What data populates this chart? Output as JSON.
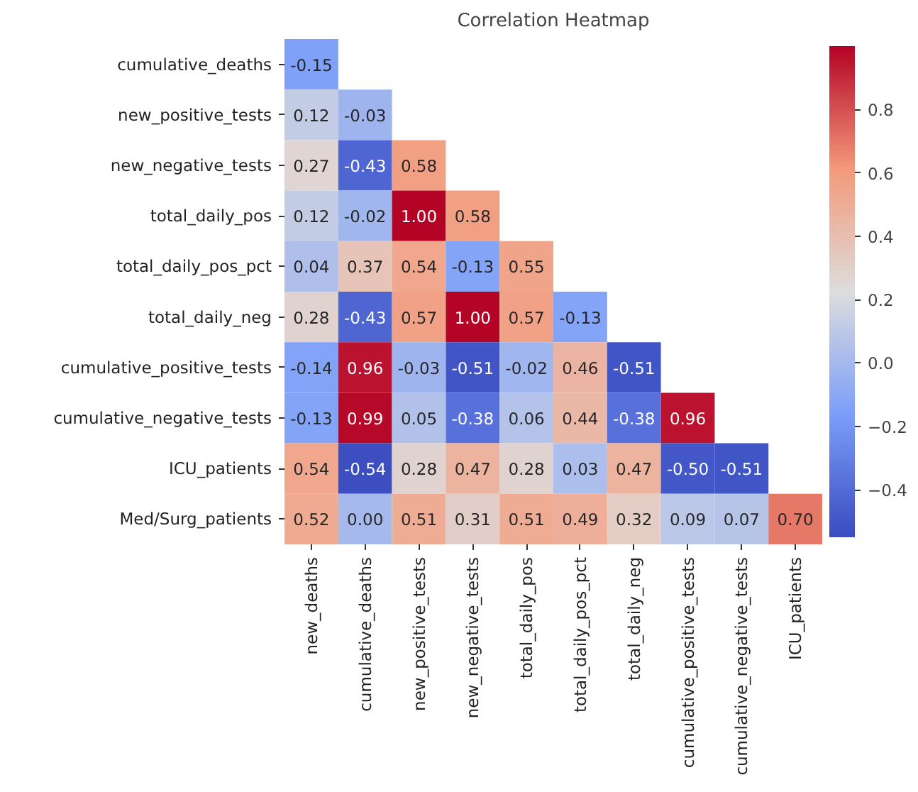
{
  "chart_data": {
    "type": "heatmap",
    "title": "Correlation Heatmap",
    "categories": [
      "new_deaths",
      "cumulative_deaths",
      "new_positive_tests",
      "new_negative_tests",
      "total_daily_pos",
      "total_daily_pos_pct",
      "total_daily_neg",
      "cumulative_positive_tests",
      "cumulative_negative_tests",
      "ICU_patients"
    ],
    "y_categories": [
      "cumulative_deaths",
      "new_positive_tests",
      "new_negative_tests",
      "total_daily_pos",
      "total_daily_pos_pct",
      "total_daily_neg",
      "cumulative_positive_tests",
      "cumulative_negative_tests",
      "ICU_patients",
      "Med/Surg_patients"
    ],
    "cells": [
      [
        -0.15,
        null,
        null,
        null,
        null,
        null,
        null,
        null,
        null,
        null
      ],
      [
        0.12,
        -0.03,
        null,
        null,
        null,
        null,
        null,
        null,
        null,
        null
      ],
      [
        0.27,
        -0.43,
        0.58,
        null,
        null,
        null,
        null,
        null,
        null,
        null
      ],
      [
        0.12,
        -0.02,
        1.0,
        0.58,
        null,
        null,
        null,
        null,
        null,
        null
      ],
      [
        0.04,
        0.37,
        0.54,
        -0.13,
        0.55,
        null,
        null,
        null,
        null,
        null
      ],
      [
        0.28,
        -0.43,
        0.57,
        1.0,
        0.57,
        -0.13,
        null,
        null,
        null,
        null
      ],
      [
        -0.14,
        0.96,
        -0.03,
        -0.51,
        -0.02,
        0.46,
        -0.51,
        null,
        null,
        null
      ],
      [
        -0.13,
        0.99,
        0.05,
        -0.38,
        0.06,
        0.44,
        -0.38,
        0.96,
        null,
        null
      ],
      [
        0.54,
        -0.54,
        0.28,
        0.47,
        0.28,
        0.03,
        0.47,
        -0.5,
        -0.51,
        null
      ],
      [
        0.52,
        0.0,
        0.51,
        0.31,
        0.51,
        0.49,
        0.32,
        0.09,
        0.07,
        0.7
      ]
    ],
    "cell_labels": [
      [
        "-0.15",
        null,
        null,
        null,
        null,
        null,
        null,
        null,
        null,
        null
      ],
      [
        "0.12",
        "-0.03",
        null,
        null,
        null,
        null,
        null,
        null,
        null,
        null
      ],
      [
        "0.27",
        "-0.43",
        "0.58",
        null,
        null,
        null,
        null,
        null,
        null,
        null
      ],
      [
        "0.12",
        "-0.02",
        "1.00",
        "0.58",
        null,
        null,
        null,
        null,
        null,
        null
      ],
      [
        "0.04",
        "0.37",
        "0.54",
        "-0.13",
        "0.55",
        null,
        null,
        null,
        null,
        null
      ],
      [
        "0.28",
        "-0.43",
        "0.57",
        "1.00",
        "0.57",
        "-0.13",
        null,
        null,
        null,
        null
      ],
      [
        "-0.14",
        "0.96",
        "-0.03",
        "-0.51",
        "-0.02",
        "0.46",
        "-0.51",
        null,
        null,
        null
      ],
      [
        "-0.13",
        "0.99",
        "0.05",
        "-0.38",
        "0.06",
        "0.44",
        "-0.38",
        "0.96",
        null,
        null
      ],
      [
        "0.54",
        "-0.54",
        "0.28",
        "0.47",
        "0.28",
        "0.03",
        "0.47",
        "-0.50",
        "-0.51",
        null
      ],
      [
        "0.52",
        "0.00",
        "0.51",
        "0.31",
        "0.51",
        "0.49",
        "0.32",
        "0.09",
        "0.07",
        "0.70"
      ]
    ],
    "clim": [
      -0.55,
      1.0
    ],
    "cticks": [
      {
        "value": -0.4,
        "label": "−0.4"
      },
      {
        "value": -0.2,
        "label": "−0.2"
      },
      "0.0",
      0.2,
      0.4,
      0.6,
      0.8
    ],
    "data_labels": true
  }
}
